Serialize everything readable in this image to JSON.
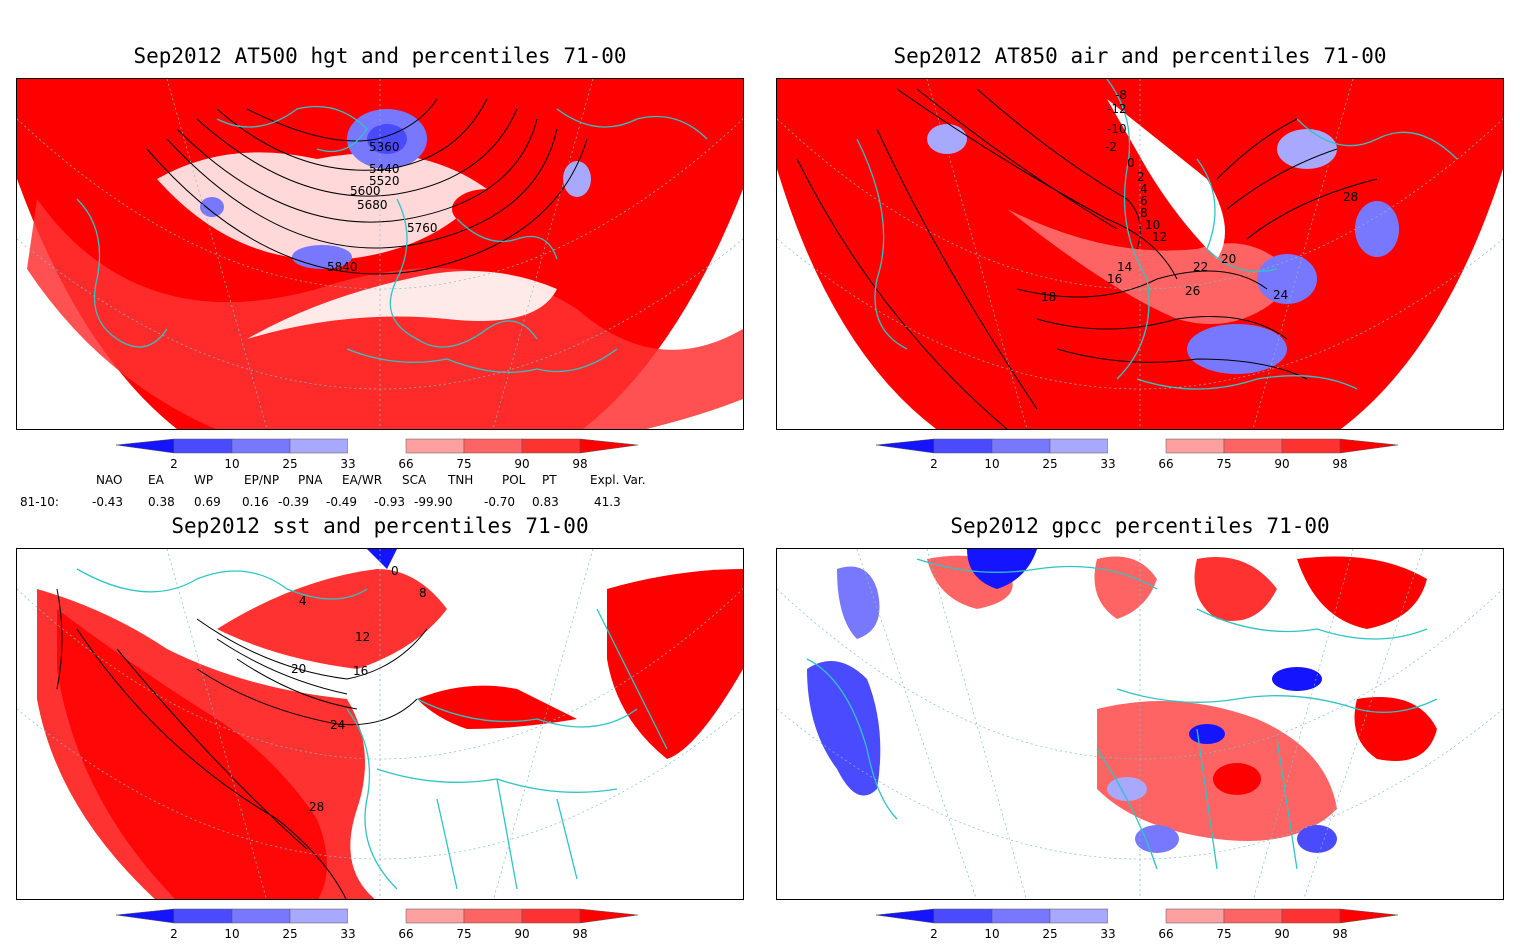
{
  "panels": [
    {
      "id": "hgt500",
      "title": "Sep2012 AT500 hgt and percentiles 71-00",
      "contour_labels": [
        "5360",
        "5440",
        "5520",
        "5600",
        "5680",
        "5760",
        "5840"
      ]
    },
    {
      "id": "air850",
      "title": "Sep2012 AT850 air and percentiles 71-00",
      "contour_labels": [
        "-8",
        "-12",
        "-10",
        "-2",
        "0",
        "2",
        "4",
        "6",
        "8",
        "10",
        "12",
        "14",
        "16",
        "18",
        "20",
        "22",
        "24",
        "26",
        "28"
      ]
    },
    {
      "id": "sst",
      "title": "Sep2012 sst and percentiles 71-00",
      "contour_labels": [
        "0",
        "4",
        "8",
        "12",
        "16",
        "20",
        "24",
        "28"
      ]
    },
    {
      "id": "gpcc",
      "title": "Sep2012 gpcc percentiles 71-00",
      "contour_labels": []
    }
  ],
  "colorbar": {
    "ticks": [
      "2",
      "10",
      "25",
      "33",
      "66",
      "75",
      "90",
      "98"
    ],
    "colors": [
      "#1414ff",
      "#4a4aff",
      "#7878ff",
      "#a8a8ff",
      "#ffffff",
      "#ffa0a0",
      "#ff6464",
      "#ff3232",
      "#ff0000"
    ]
  },
  "indices": {
    "headers": [
      "NAO",
      "EA",
      "WP",
      "EP/NP",
      "PNA",
      "EA/WR",
      "SCA",
      "TNH",
      "POL",
      "PT",
      "Expl. Var."
    ],
    "row_label": "81-10:",
    "values": [
      "-0.43",
      "0.38",
      "0.69",
      "0.16",
      "-0.39",
      "-0.49",
      "-0.93",
      "-99.90",
      "-0.70",
      "0.83",
      "41.3"
    ]
  }
}
